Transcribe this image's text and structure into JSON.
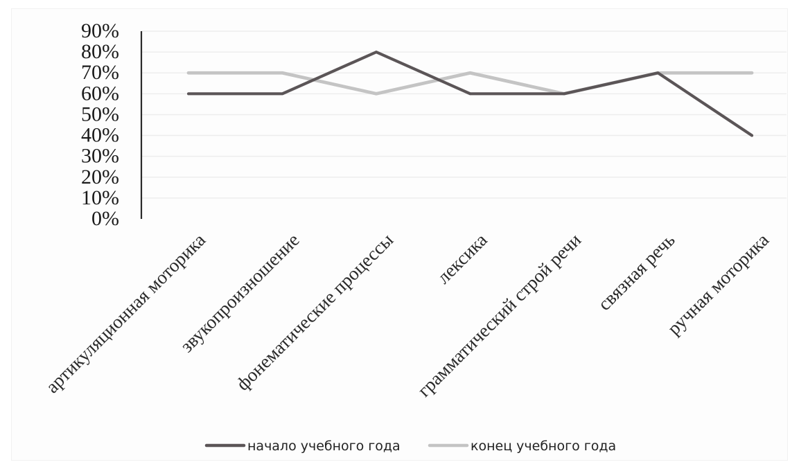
{
  "chart_data": {
    "type": "line",
    "categories": [
      "артикуляционная моторика",
      "звукопроизношение",
      "фонематические процессы",
      "лексика",
      "грамматический строй речи",
      "связная речь",
      "ручная моторика"
    ],
    "series": [
      {
        "name": "начало учебного года",
        "values": [
          60,
          60,
          80,
          60,
          60,
          70,
          40
        ],
        "color": "#5b5557"
      },
      {
        "name": "конец учебного года",
        "values": [
          70,
          70,
          60,
          70,
          60,
          70,
          70
        ],
        "color": "#c4c4c4"
      }
    ],
    "y_ticks": [
      "0%",
      "10%",
      "20%",
      "30%",
      "40%",
      "50%",
      "60%",
      "70%",
      "80%",
      "90%"
    ],
    "ylim": [
      0,
      90
    ],
    "grid": true,
    "legend": "bottom"
  }
}
